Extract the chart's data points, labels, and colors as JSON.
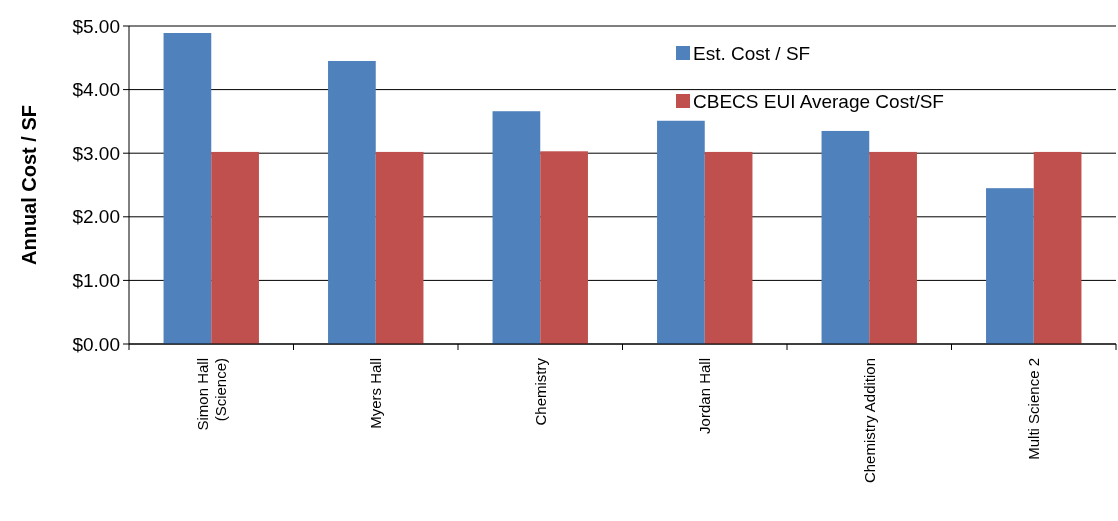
{
  "chart_data": {
    "type": "bar",
    "ylabel": "Annual Cost / SF",
    "categories": [
      "Simon Hall\n(Science)",
      "Myers Hall",
      "Chemistry",
      "Jordan Hall",
      "Chemistry Addition",
      "Multi Science 2"
    ],
    "series": [
      {
        "name": "Est. Cost / SF",
        "color": "#4f81bd",
        "values": [
          4.89,
          4.45,
          3.66,
          3.51,
          3.35,
          2.45
        ]
      },
      {
        "name": "CBECS EUI Average Cost/SF",
        "color": "#c0504d",
        "values": [
          3.02,
          3.02,
          3.03,
          3.02,
          3.02,
          3.02
        ]
      }
    ],
    "ylim": [
      0,
      5
    ],
    "yticks": [
      {
        "value": 0,
        "label": "$0.00"
      },
      {
        "value": 1,
        "label": "$1.00"
      },
      {
        "value": 2,
        "label": "$2.00"
      },
      {
        "value": 3,
        "label": "$3.00"
      },
      {
        "value": 4,
        "label": "$4.00"
      },
      {
        "value": 5,
        "label": "$5.00"
      }
    ],
    "grid": "y",
    "legend": "top right"
  }
}
